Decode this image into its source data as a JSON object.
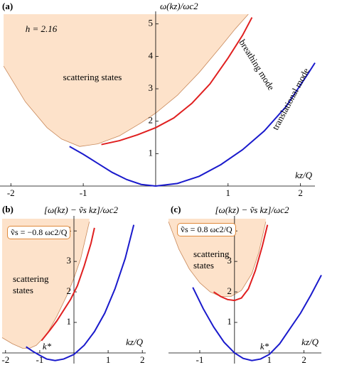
{
  "chart_data": [
    {
      "type": "line",
      "panel": "(a)",
      "ylabel": "ω(kz)/ωc2",
      "xlabel": "kz/Q",
      "annotations": [
        "h = 2.16"
      ],
      "xlim": [
        -2.15,
        2.2
      ],
      "ylim": [
        0,
        5.3
      ],
      "xticks": [
        -2,
        -1,
        1,
        2
      ],
      "yticks": [
        1,
        2,
        3,
        4,
        5
      ],
      "series": [
        {
          "name": "scattering states",
          "fill": true,
          "color": "#fde2ca",
          "x": [
            -2.1,
            -1.8,
            -1.5,
            -1.3,
            -1.05,
            -0.8,
            -0.5,
            -0.2,
            0,
            0.3,
            0.6,
            0.9,
            1.1,
            1.28
          ],
          "values": [
            3.7,
            2.6,
            1.8,
            1.45,
            1.22,
            1.3,
            1.55,
            1.95,
            2.25,
            2.8,
            3.5,
            4.3,
            4.85,
            5.3
          ]
        },
        {
          "name": "translational mode",
          "color": "#1a1acc",
          "x": [
            -1.19,
            -1,
            -0.8,
            -0.6,
            -0.4,
            -0.2,
            0,
            0.3,
            0.6,
            0.9,
            1.2,
            1.5,
            1.8,
            2.1,
            2.2
          ],
          "values": [
            1.22,
            0.98,
            0.7,
            0.42,
            0.2,
            0.05,
            0,
            0.08,
            0.3,
            0.66,
            1.12,
            1.7,
            2.45,
            3.45,
            3.8
          ]
        },
        {
          "name": "breathing mode",
          "color": "#e02020",
          "x": [
            -0.75,
            -0.5,
            -0.25,
            0,
            0.25,
            0.5,
            0.75,
            1,
            1.2,
            1.33
          ],
          "values": [
            1.28,
            1.4,
            1.58,
            1.8,
            2.1,
            2.55,
            3.15,
            3.95,
            4.65,
            5.2
          ]
        }
      ]
    },
    {
      "type": "line",
      "panel": "(b)",
      "ylabel": "[ω(kz) − ṽs kz]/ωc2",
      "xlabel": "kz/Q",
      "annotations": [
        "ṽs = −0.8 ωc2/Q",
        "k*"
      ],
      "xlim": [
        -2.1,
        2.1
      ],
      "ylim": [
        -0.35,
        4.4
      ],
      "xticks": [
        -2,
        -1,
        1,
        2
      ],
      "yticks": [
        1,
        2,
        3,
        4
      ],
      "series": [
        {
          "name": "scattering states",
          "fill": true,
          "color": "#fde2ca",
          "x": [
            -2.1,
            -1.8,
            -1.5,
            -1.3,
            -1.1,
            -0.8,
            -0.5,
            -0.2,
            0,
            0.2,
            0.45
          ],
          "values": [
            0.5,
            0.3,
            0.15,
            0.15,
            0.25,
            0.6,
            1.2,
            1.9,
            2.45,
            3.1,
            4.3
          ]
        },
        {
          "color": "#1a1acc",
          "x": [
            -1.4,
            -1.2,
            -1,
            -0.8,
            -0.55,
            -0.3,
            0,
            0.3,
            0.6,
            0.9,
            1.2,
            1.5,
            1.75
          ],
          "values": [
            0.2,
            0.05,
            -0.08,
            -0.2,
            -0.25,
            -0.2,
            -0.05,
            0.25,
            0.7,
            1.3,
            2.1,
            3.1,
            4.2
          ]
        },
        {
          "color": "#e02020",
          "x": [
            -0.95,
            -0.7,
            -0.5,
            -0.3,
            -0.1,
            0.1,
            0.3,
            0.5,
            0.6
          ],
          "values": [
            0.4,
            0.75,
            1.05,
            1.4,
            1.75,
            2.2,
            2.85,
            3.6,
            4.1
          ]
        }
      ]
    },
    {
      "type": "line",
      "panel": "(c)",
      "ylabel": "[ω(kz) − ṽs kz]/ωc2",
      "xlabel": "kz/Q",
      "annotations": [
        "ṽs = 0.8 ωc2/Q",
        "k*"
      ],
      "xlim": [
        -1.9,
        2.5
      ],
      "ylim": [
        -0.35,
        4.4
      ],
      "xticks": [
        -1,
        1,
        2
      ],
      "yticks": [
        1,
        2,
        3,
        4
      ],
      "series": [
        {
          "name": "scattering states",
          "fill": true,
          "color": "#fde2ca",
          "x": [
            -1.9,
            -1.6,
            -1.3,
            -1,
            -0.7,
            -0.4,
            -0.1,
            0.2,
            0.5,
            0.7,
            0.9
          ],
          "values": [
            4.3,
            3.4,
            2.75,
            2.3,
            2.0,
            1.85,
            1.85,
            2.05,
            2.6,
            3.3,
            4.3
          ]
        },
        {
          "color": "#1a1acc",
          "x": [
            -1.2,
            -0.9,
            -0.6,
            -0.3,
            0,
            0.25,
            0.5,
            0.75,
            1,
            1.3,
            1.6,
            1.9,
            2.2,
            2.5
          ],
          "values": [
            2.15,
            1.45,
            0.85,
            0.35,
            0.0,
            -0.18,
            -0.25,
            -0.2,
            -0.05,
            0.3,
            0.8,
            1.3,
            1.9,
            2.55
          ]
        },
        {
          "color": "#e02020",
          "x": [
            -0.6,
            -0.4,
            -0.2,
            0,
            0.2,
            0.4,
            0.6,
            0.8,
            0.95
          ],
          "values": [
            2.0,
            1.85,
            1.75,
            1.72,
            1.8,
            2.1,
            2.7,
            3.5,
            4.2
          ]
        }
      ]
    }
  ]
}
